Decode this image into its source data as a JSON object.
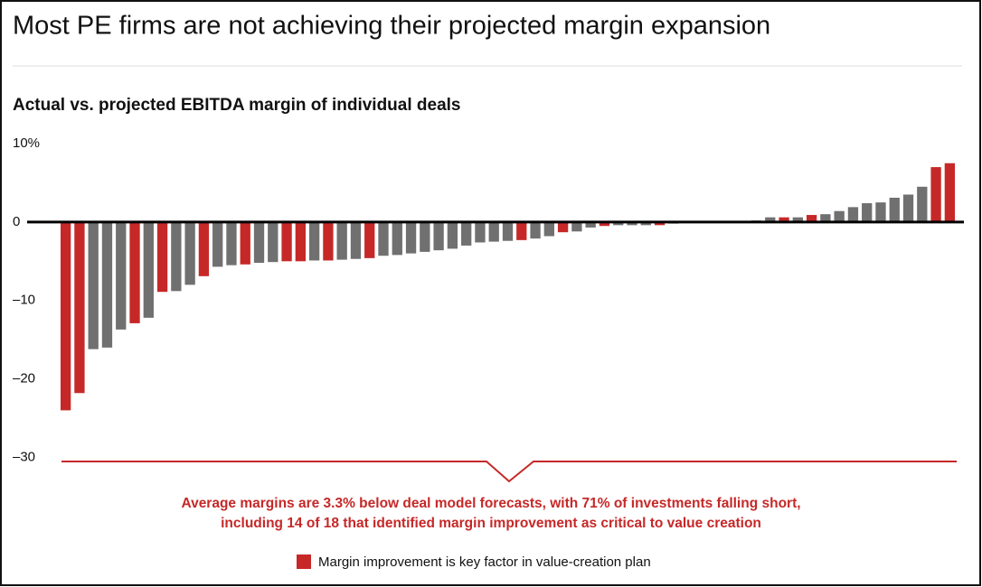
{
  "chart_data": {
    "type": "bar",
    "title": "Most PE firms are not achieving their projected margin expansion",
    "subtitle": "Actual vs. projected EBITDA margin of individual deals",
    "values": [
      -24,
      -21.8,
      -16.2,
      -16,
      -13.7,
      -12.9,
      -12.2,
      -8.9,
      -8.8,
      -8,
      -6.9,
      -5.7,
      -5.5,
      -5.4,
      -5.2,
      -5.1,
      -5,
      -5,
      -4.9,
      -4.9,
      -4.8,
      -4.7,
      -4.6,
      -4.3,
      -4.2,
      -4,
      -3.8,
      -3.6,
      -3.4,
      -3,
      -2.6,
      -2.5,
      -2.4,
      -2.3,
      -2.1,
      -1.8,
      -1.3,
      -1.2,
      -0.7,
      -0.5,
      -0.4,
      -0.4,
      -0.4,
      -0.4,
      -0.2,
      0,
      0,
      0,
      0,
      0,
      0.2,
      0.6,
      0.6,
      0.6,
      0.9,
      1,
      1.4,
      1.9,
      2.4,
      2.5,
      3.1,
      3.5,
      4.5,
      7,
      7.5
    ],
    "colors": [
      "#c62828",
      "#c62828",
      "#707070",
      "#707070",
      "#707070",
      "#c62828",
      "#707070",
      "#c62828",
      "#707070",
      "#707070",
      "#c62828",
      "#707070",
      "#707070",
      "#c62828",
      "#707070",
      "#707070",
      "#c62828",
      "#c62828",
      "#707070",
      "#c62828",
      "#707070",
      "#707070",
      "#c62828",
      "#707070",
      "#707070",
      "#707070",
      "#707070",
      "#707070",
      "#707070",
      "#707070",
      "#707070",
      "#707070",
      "#707070",
      "#c62828",
      "#707070",
      "#707070",
      "#c62828",
      "#707070",
      "#707070",
      "#c62828",
      "#707070",
      "#707070",
      "#707070",
      "#c62828",
      "#707070",
      "#707070",
      "#707070",
      "#707070",
      "#707070",
      "#707070",
      "#707070",
      "#707070",
      "#c62828",
      "#707070",
      "#c62828",
      "#707070",
      "#707070",
      "#707070",
      "#707070",
      "#707070",
      "#707070",
      "#707070",
      "#707070",
      "#c62828",
      "#c62828"
    ],
    "ylim": [
      -30,
      10
    ],
    "yticks": [
      {
        "value": 10,
        "label": "10%"
      },
      0,
      {
        "value": -10,
        "label": "–10"
      },
      {
        "value": -20,
        "label": "–20"
      },
      {
        "value": -30,
        "label": "–30"
      }
    ],
    "grid": false,
    "annotation": [
      "Average margins are 3.3% below deal model forecasts, with 71% of investments falling short,",
      "including 14 of 18 that identified margin improvement as critical to value creation"
    ],
    "legend": {
      "label": "Margin improvement is key factor in value-creation plan",
      "color": "#c62828"
    }
  }
}
